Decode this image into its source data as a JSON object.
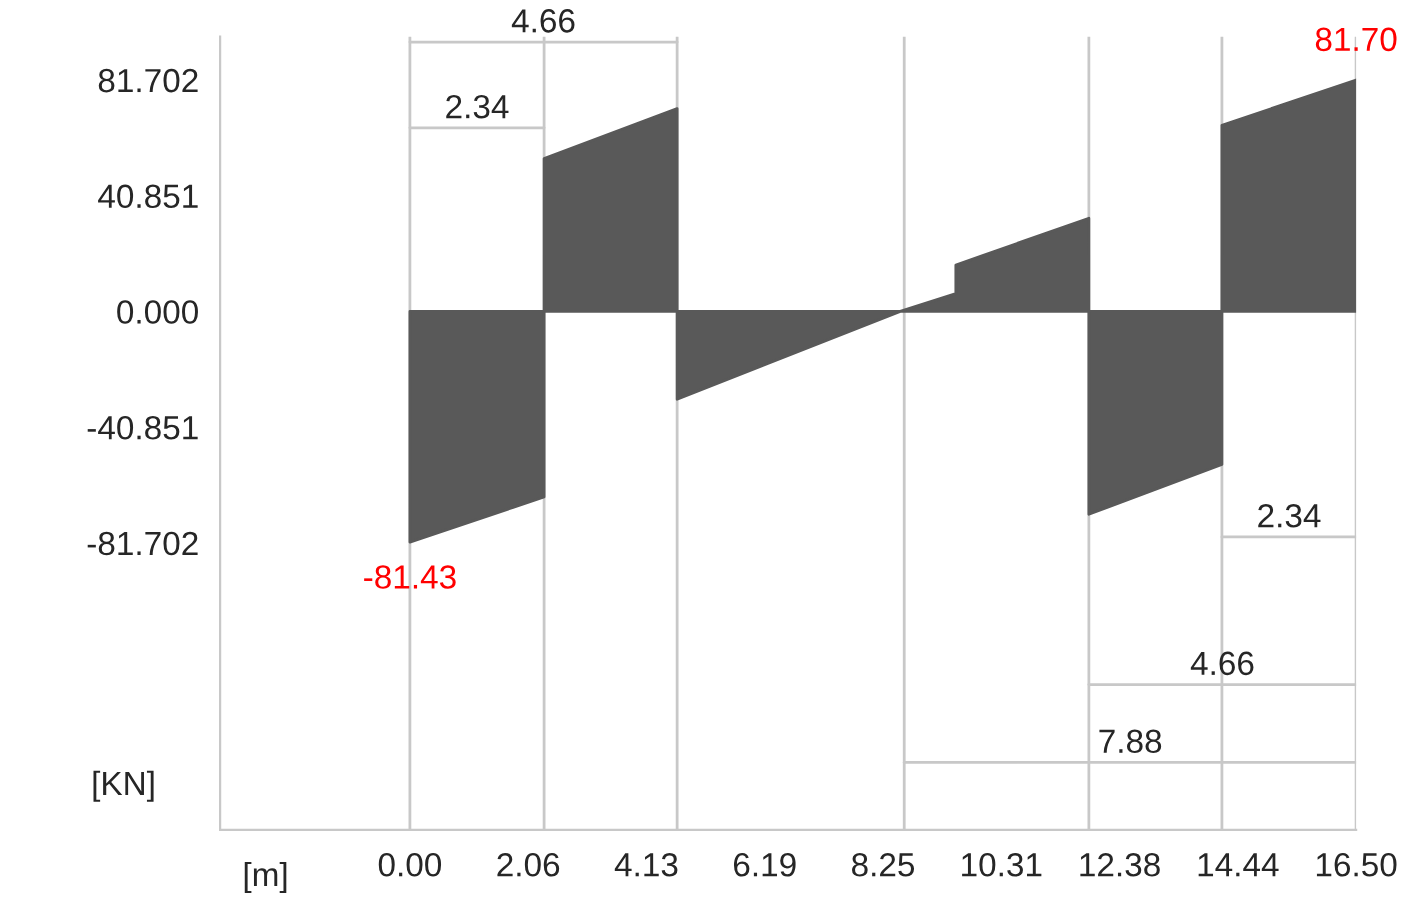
{
  "chart_data": {
    "type": "area",
    "xlabel": "[m]",
    "ylabel": "[KN]",
    "xlim": [
      -3.31,
      16.5
    ],
    "ylim": [
      -183,
      97
    ],
    "xticks": [
      {
        "value": 0,
        "label": "0.00"
      },
      {
        "value": 2.0625,
        "label": "2.06"
      },
      {
        "value": 4.125,
        "label": "4.13"
      },
      {
        "value": 6.1875,
        "label": "6.19"
      },
      {
        "value": 8.25,
        "label": "8.25"
      },
      {
        "value": 10.3125,
        "label": "10.31"
      },
      {
        "value": 12.375,
        "label": "12.38"
      },
      {
        "value": 14.4375,
        "label": "14.44"
      },
      {
        "value": 16.5,
        "label": "16.50"
      }
    ],
    "yticks": [
      81.702,
      40.851,
      {
        "value": 0,
        "label": "0.000"
      },
      -40.851,
      -81.702
    ],
    "grid": false,
    "legend": false,
    "series": [
      {
        "color": "#595959",
        "x": [
          0,
          2.34,
          2.34,
          4.66,
          4.66,
          8.55,
          9.52,
          9.52,
          11.84,
          11.84,
          14.16,
          14.16,
          16.5
        ],
        "values": [
          -81.43,
          -65.5,
          54.0,
          71.6,
          -31.0,
          0,
          6.3,
          16.4,
          32.9,
          -71.6,
          -54.0,
          65.7,
          81.7
        ],
        "value_labels": [
          "-81.43",
          null,
          null,
          null,
          null,
          null,
          null,
          null,
          null,
          null,
          null,
          null,
          "81.70"
        ]
      },
      {
        "type": "line",
        "color": "#c8c8c8",
        "x": [
          0,
          2.34
        ],
        "values": [
          64.8,
          64.8
        ]
      },
      {
        "type": "line",
        "color": "#c8c8c8",
        "x": [
          0,
          4.66
        ],
        "values": [
          95.1,
          95.1
        ]
      },
      {
        "type": "line",
        "color": "#c8c8c8",
        "x": [
          14.16,
          16.5
        ],
        "values": [
          -79.6,
          -79.6
        ]
      },
      {
        "type": "line",
        "color": "#c8c8c8",
        "x": [
          11.84,
          16.5
        ],
        "values": [
          -131.7,
          -131.7
        ]
      },
      {
        "type": "line",
        "color": "#c8c8c8",
        "x": [
          8.62,
          16.5
        ],
        "values": [
          -159.2,
          -159.2
        ]
      }
    ],
    "ref_lines": [
      {
        "axis": "x",
        "value": 0,
        "color": "#c8c8c8"
      },
      {
        "axis": "x",
        "value": 2.34,
        "color": "#c8c8c8"
      },
      {
        "axis": "x",
        "value": 4.66,
        "color": "#c8c8c8"
      },
      {
        "axis": "x",
        "value": 8.62,
        "color": "#c8c8c8"
      },
      {
        "axis": "x",
        "value": 11.84,
        "color": "#c8c8c8"
      },
      {
        "axis": "x",
        "value": 14.16,
        "color": "#c8c8c8"
      },
      {
        "axis": "x",
        "value": 16.5,
        "color": "#c8c8c8"
      }
    ],
    "annotations": [
      {
        "text": "2.34",
        "x": 1.17,
        "y": 64.8
      },
      {
        "text": "4.66",
        "x": 2.33,
        "y": 95.1
      },
      {
        "text": "2.34",
        "x": 15.33,
        "y": -79.6
      },
      {
        "text": "4.66",
        "x": 14.17,
        "y": -131.7
      },
      {
        "text": "7.88",
        "x": 12.56,
        "y": -159.2
      }
    ]
  }
}
